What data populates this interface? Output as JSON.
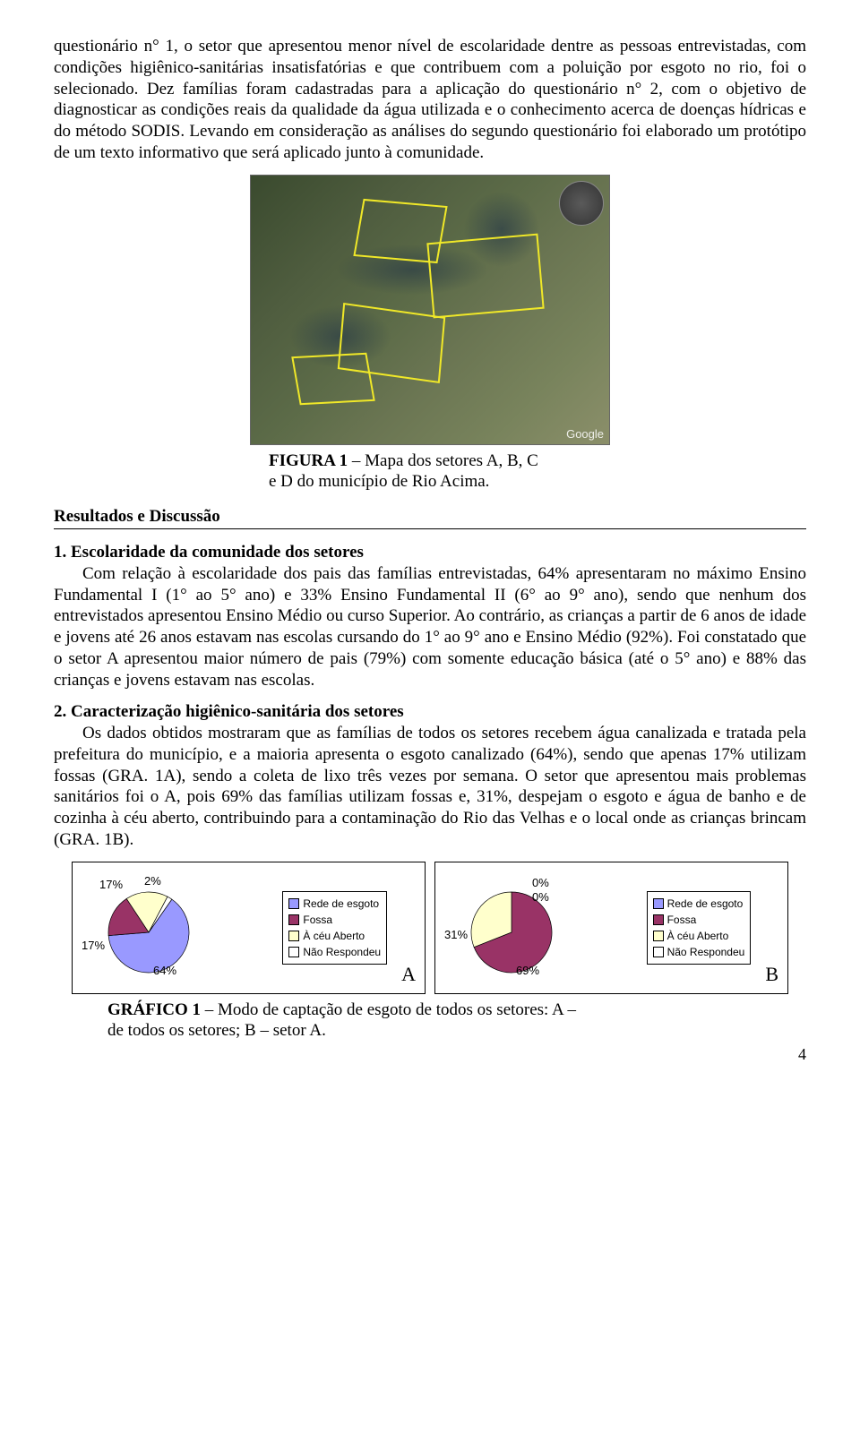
{
  "para1": "questionário n° 1, o setor que apresentou menor nível de escolaridade dentre as pessoas entrevistadas, com condições higiênico-sanitárias insatisfatórias e que contribuem com a poluição por esgoto no rio, foi o selecionado. Dez famílias foram cadastradas para a aplicação do questionário n° 2, com o objetivo de diagnosticar as condições reais da qualidade da água utilizada e o conhecimento acerca de doenças hídricas e do método SODIS. Levando em consideração as análises do segundo questionário foi elaborado um protótipo de um texto informativo que será aplicado junto à comunidade.",
  "fig1_cap_l1": "FIGURA 1 – Mapa dos setores A, B, C",
  "fig1_cap_l2": "e D do município de Rio Acima.",
  "fig1_bold": "FIGURA 1",
  "results_title": "Resultados e Discussão",
  "sec1_title": "1.  Escolaridade da comunidade dos setores",
  "sec1_body": "Com relação à escolaridade dos pais das famílias entrevistadas, 64% apresentaram no máximo Ensino Fundamental I (1° ao 5° ano) e 33% Ensino Fundamental II (6° ao 9° ano), sendo que nenhum dos entrevistados apresentou Ensino Médio ou curso Superior. Ao contrário, as crianças a partir de 6 anos de idade e jovens até 26 anos estavam nas escolas cursando do 1° ao 9° ano e Ensino Médio (92%). Foi constatado que o setor A apresentou maior número de pais (79%) com somente educação básica (até o 5° ano) e 88% das crianças e jovens estavam nas escolas.",
  "sec2_title": "2.  Caracterização higiênico-sanitária dos setores",
  "sec2_body": "Os dados obtidos mostraram que as famílias de todos os setores recebem água canalizada e tratada pela prefeitura do município, e a maioria apresenta o esgoto canalizado (64%), sendo que apenas 17% utilizam fossas (GRA. 1A), sendo a coleta de lixo três vezes por semana. O setor que apresentou mais problemas sanitários foi o A, pois 69% das famílias utilizam fossas e, 31%, despejam o esgoto e água de banho e de cozinha à céu aberto, contribuindo para a contaminação do Rio das Velhas e o local onde as crianças brincam (GRA. 1B).",
  "legend": {
    "items": [
      "Rede de esgoto",
      "Fossa",
      "À céu Aberto",
      "Não Respondeu"
    ],
    "colors": [
      "#9999ff",
      "#993366",
      "#ffffcc",
      "#ffffff"
    ]
  },
  "chartA": {
    "type": "pie",
    "labels": [
      "17%",
      "2%",
      "17%",
      "64%"
    ],
    "slices": [
      {
        "value": 64,
        "color": "#9999ff"
      },
      {
        "value": 17,
        "color": "#993366"
      },
      {
        "value": 17,
        "color": "#ffffcc"
      },
      {
        "value": 2,
        "color": "#ffffff"
      }
    ],
    "letter": "A"
  },
  "chartB": {
    "type": "pie",
    "labels": [
      "0%",
      "0%",
      "31%",
      "69%"
    ],
    "slices": [
      {
        "value": 0,
        "color": "#9999ff"
      },
      {
        "value": 69,
        "color": "#993366"
      },
      {
        "value": 31,
        "color": "#ffffcc"
      },
      {
        "value": 0,
        "color": "#ffffff"
      }
    ],
    "letter": "B"
  },
  "graf1_bold": "GRÁFICO 1",
  "graf1_rest_l1": " – Modo de captação de esgoto de todos os setores: A –",
  "graf1_l2": "de todos os setores; B – setor A.",
  "google": "Google",
  "pagenum": "4"
}
